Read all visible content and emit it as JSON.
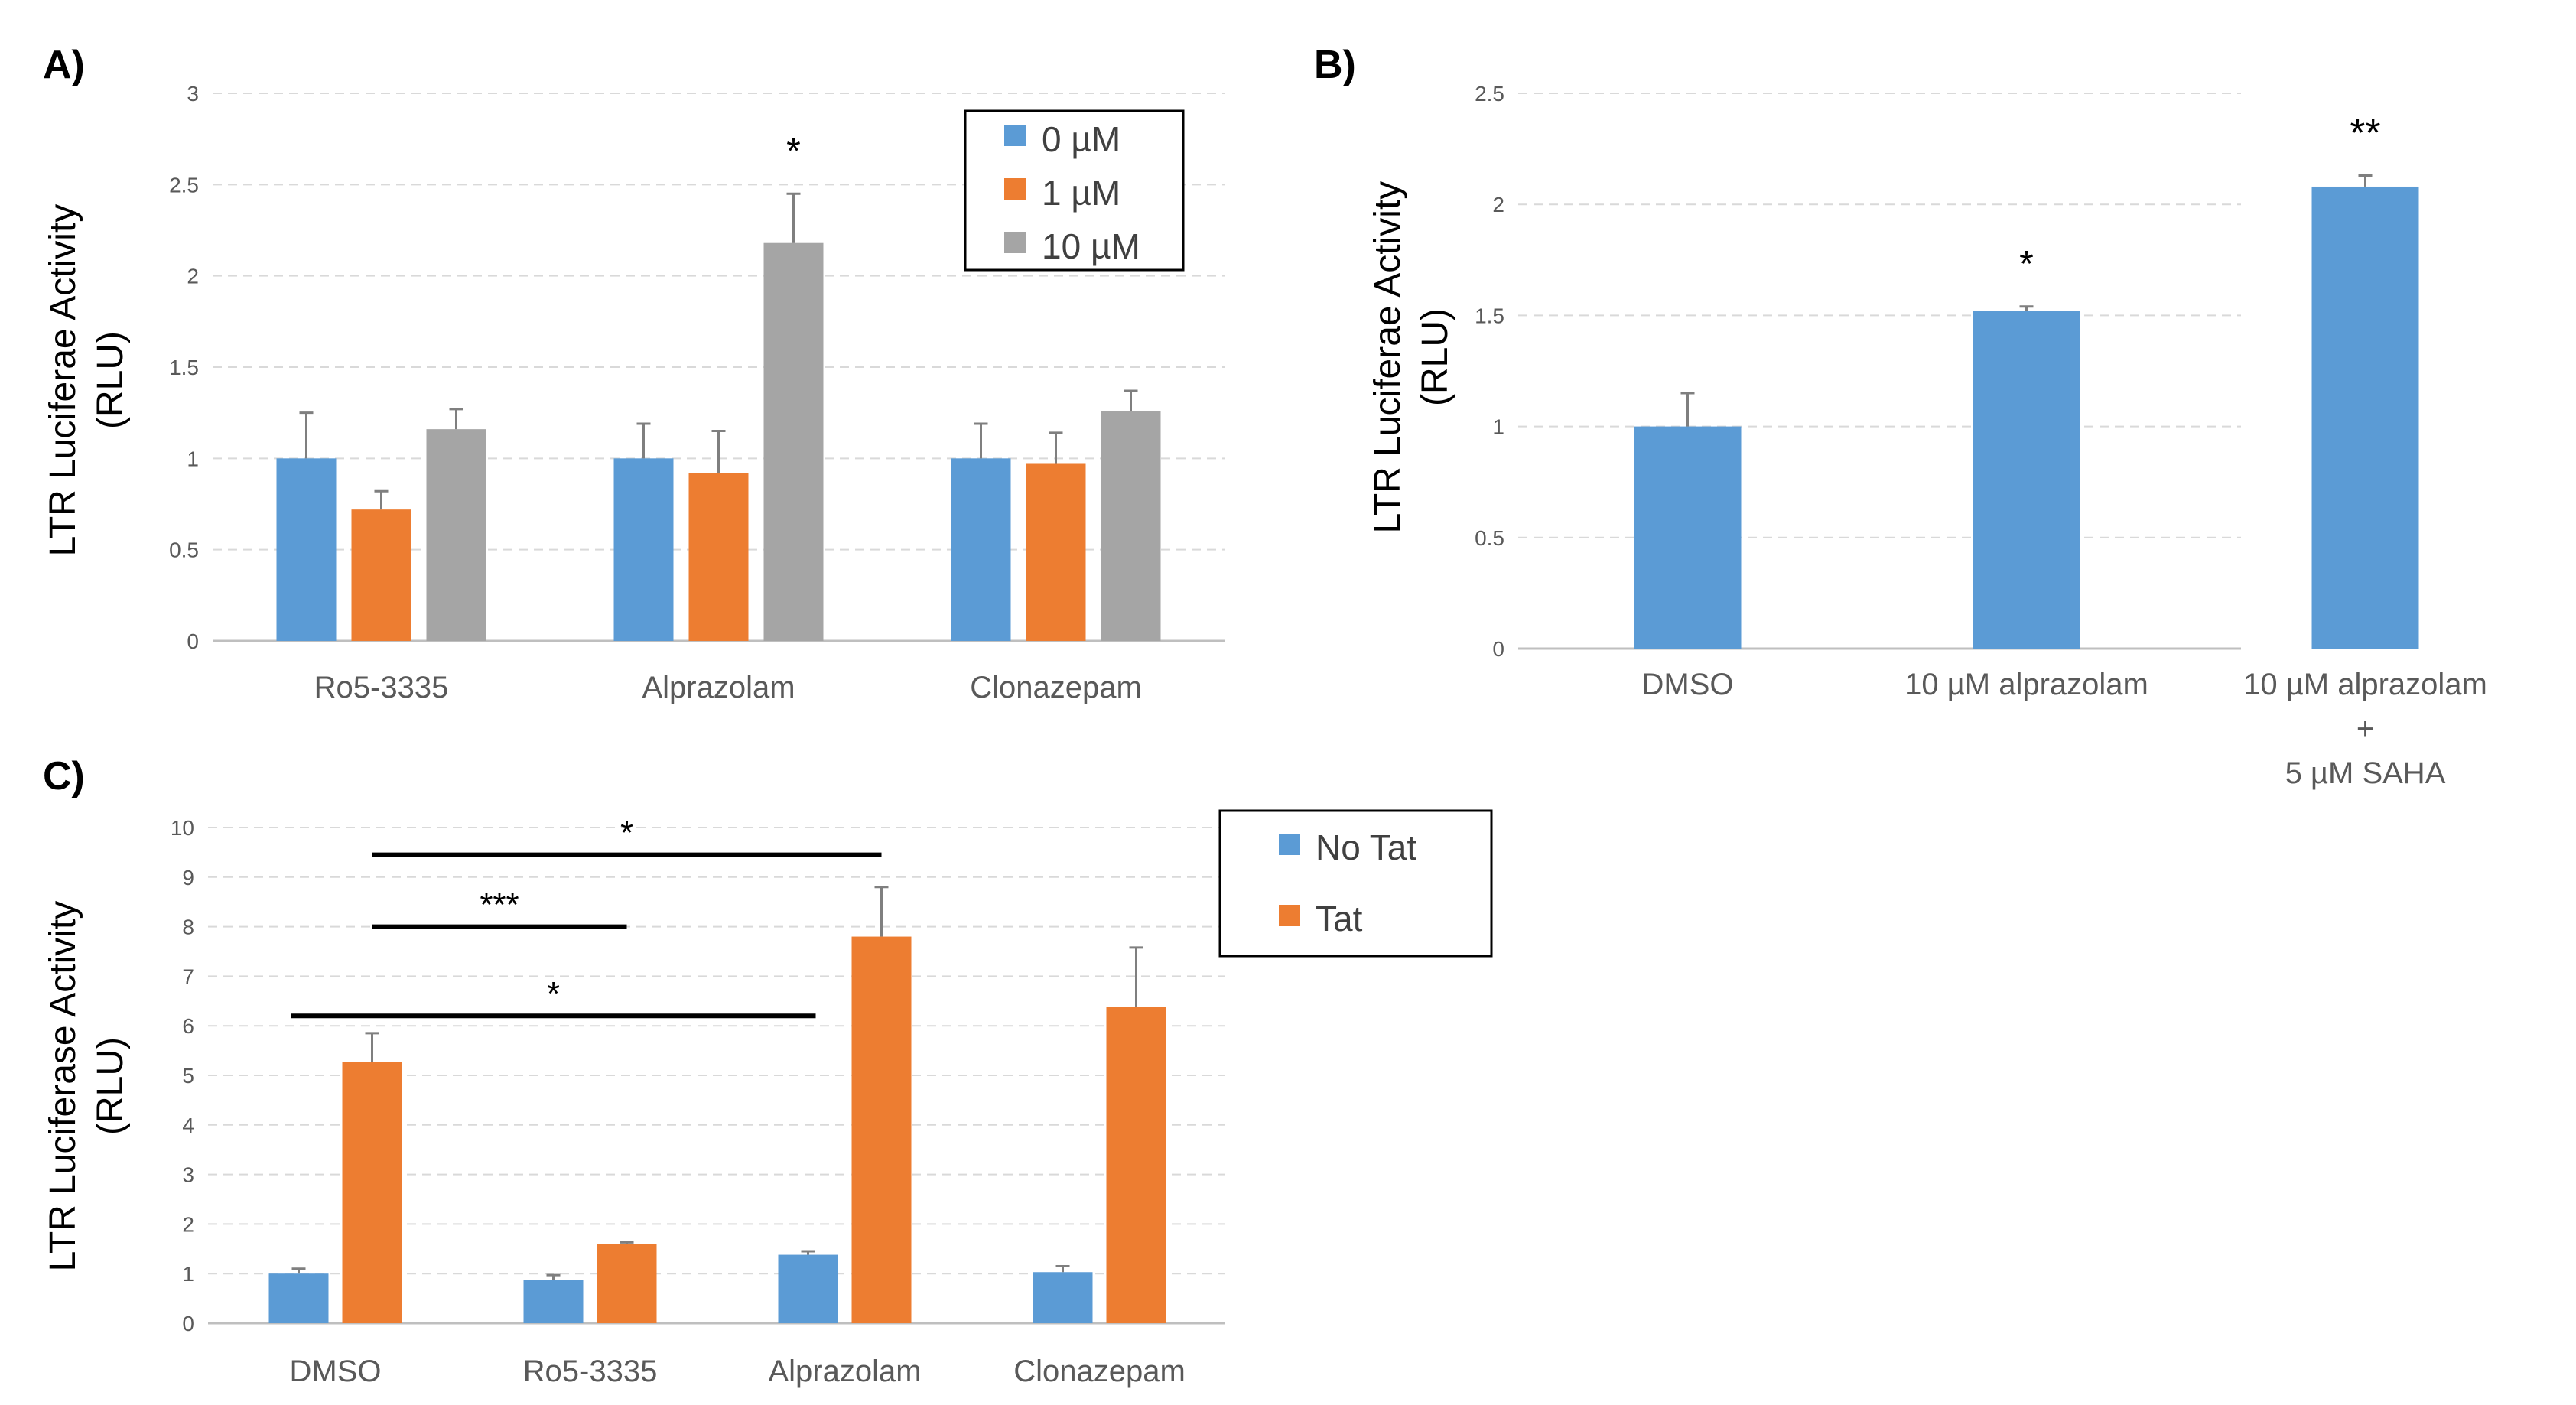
{
  "colors": {
    "blue": "#5b9bd5",
    "orange": "#ed7d31",
    "gray": "#a5a5a5",
    "grid": "#d9d9d9",
    "axis": "#bfbfbf",
    "err": "#7f7f7f"
  },
  "chart_data": [
    {
      "id": "A",
      "panel_label": "A)",
      "type": "bar",
      "ylabel_line1": "LTR Luciferae Activity",
      "ylabel_line2": "(RLU)",
      "ylim": [
        0,
        3
      ],
      "yticks": [
        "0",
        "0.5",
        "1",
        "1.5",
        "2",
        "2.5",
        "3"
      ],
      "categories": [
        "Ro5-3335",
        "Alprazolam",
        "Clonazepam"
      ],
      "series": [
        {
          "name": "0 µM",
          "color": "#5b9bd5",
          "values": [
            1.0,
            1.0,
            1.0
          ],
          "errors": [
            0.25,
            0.19,
            0.19
          ]
        },
        {
          "name": "1 µM",
          "color": "#ed7d31",
          "values": [
            0.72,
            0.92,
            0.97
          ],
          "errors": [
            0.1,
            0.23,
            0.17
          ]
        },
        {
          "name": "10 µM",
          "color": "#a5a5a5",
          "values": [
            1.16,
            2.18,
            1.26
          ],
          "errors": [
            0.11,
            0.27,
            0.11
          ]
        }
      ],
      "annotations": [
        {
          "text": "*",
          "category": 1,
          "series": 2
        }
      ],
      "legend": "top-right"
    },
    {
      "id": "B",
      "panel_label": "B)",
      "type": "bar",
      "ylabel_line1": "LTR Luciferae Activity",
      "ylabel_line2": "(RLU)",
      "ylim": [
        0,
        2.5
      ],
      "yticks": [
        "0",
        "0.5",
        "1",
        "1.5",
        "2",
        "2.5"
      ],
      "categories": [
        {
          "lines": [
            "DMSO"
          ]
        },
        {
          "lines": [
            "10 µM alprazolam"
          ]
        },
        {
          "lines": [
            "10 µM alprazolam",
            "+",
            "5 µM SAHA"
          ]
        }
      ],
      "series": [
        {
          "name": "RLU",
          "color": "#5b9bd5",
          "values": [
            1.0,
            1.52,
            2.08
          ],
          "errors": [
            0.15,
            0.02,
            0.05
          ]
        }
      ],
      "annotations": [
        {
          "text": "*",
          "category": 1
        },
        {
          "text": "**",
          "category": 2
        }
      ]
    },
    {
      "id": "C",
      "panel_label": "C)",
      "type": "bar",
      "ylabel_line1": "LTR Luciferase Activity",
      "ylabel_line2": "(RLU)",
      "ylim": [
        0,
        10
      ],
      "yticks": [
        "0",
        "1",
        "2",
        "3",
        "4",
        "5",
        "6",
        "7",
        "8",
        "9",
        "10"
      ],
      "categories": [
        "DMSO",
        "Ro5-3335",
        "Alprazolam",
        "Clonazepam"
      ],
      "series": [
        {
          "name": "No Tat",
          "color": "#5b9bd5",
          "values": [
            1.0,
            0.87,
            1.38,
            1.03
          ],
          "errors": [
            0.1,
            0.1,
            0.07,
            0.12
          ]
        },
        {
          "name": "Tat",
          "color": "#ed7d31",
          "values": [
            5.27,
            1.6,
            7.8,
            6.38
          ],
          "errors": [
            0.58,
            0.03,
            1.0,
            1.2
          ]
        }
      ],
      "significance": [
        {
          "text": "*",
          "level": 9.45
        },
        {
          "text": "***",
          "level": 8.0
        },
        {
          "text": "*",
          "level": 6.2
        }
      ],
      "legend": "right"
    }
  ]
}
